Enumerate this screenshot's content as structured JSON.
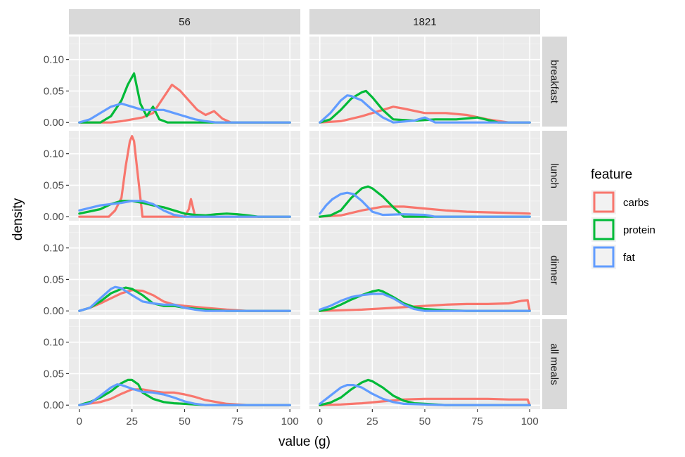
{
  "chart_data": {
    "type": "line",
    "chart_kind": "faceted density plot",
    "xlabel": "value (g)",
    "ylabel": "density",
    "xlim": [
      0,
      100
    ],
    "ylim": [
      0,
      0.13
    ],
    "x_ticks": [
      0,
      25,
      50,
      75,
      100
    ],
    "x_tick_labels": [
      "0",
      "25",
      "50",
      "75",
      "100"
    ],
    "y_ticks": [
      0,
      0.05,
      0.1
    ],
    "y_tick_labels": [
      "0.00",
      "0.05",
      "0.10"
    ],
    "grid": true,
    "columns": [
      "56",
      "1821"
    ],
    "rows": [
      "breakfast",
      "lunch",
      "dinner",
      "all meals"
    ],
    "legend": {
      "title": "feature",
      "position": "right",
      "entries": [
        {
          "label": "carbs",
          "color": "#F8766D"
        },
        {
          "label": "protein",
          "color": "#00BA38"
        },
        {
          "label": "fat",
          "color": "#619CFF"
        }
      ]
    },
    "panels": [
      {
        "col": "56",
        "row": "breakfast",
        "series": [
          {
            "name": "carbs",
            "x": [
              0,
              15,
              20,
              25,
              30,
              35,
              40,
              44,
              48,
              52,
              56,
              60,
              64,
              68,
              72,
              100
            ],
            "y": [
              0,
              0,
              0.002,
              0.005,
              0.008,
              0.015,
              0.04,
              0.06,
              0.05,
              0.035,
              0.02,
              0.012,
              0.018,
              0.006,
              0,
              0
            ]
          },
          {
            "name": "protein",
            "x": [
              0,
              10,
              15,
              20,
              23,
              26,
              29,
              32,
              35,
              38,
              42,
              100
            ],
            "y": [
              0,
              0,
              0.01,
              0.035,
              0.06,
              0.078,
              0.03,
              0.01,
              0.025,
              0.005,
              0,
              0
            ]
          },
          {
            "name": "fat",
            "x": [
              0,
              5,
              10,
              15,
              20,
              25,
              30,
              35,
              40,
              45,
              50,
              55,
              60,
              65,
              100
            ],
            "y": [
              0,
              0.005,
              0.015,
              0.025,
              0.03,
              0.025,
              0.02,
              0.02,
              0.02,
              0.015,
              0.01,
              0.005,
              0.002,
              0,
              0
            ]
          }
        ]
      },
      {
        "col": "1821",
        "row": "breakfast",
        "series": [
          {
            "name": "carbs",
            "x": [
              0,
              10,
              20,
              30,
              35,
              40,
              50,
              60,
              70,
              80,
              90,
              100
            ],
            "y": [
              0,
              0.002,
              0.01,
              0.02,
              0.025,
              0.022,
              0.015,
              0.015,
              0.012,
              0.005,
              0,
              0
            ]
          },
          {
            "name": "protein",
            "x": [
              0,
              5,
              10,
              15,
              20,
              22,
              25,
              30,
              35,
              45,
              55,
              65,
              75,
              85,
              100
            ],
            "y": [
              0,
              0.005,
              0.02,
              0.038,
              0.048,
              0.05,
              0.04,
              0.02,
              0.005,
              0.003,
              0.005,
              0.005,
              0.008,
              0,
              0
            ]
          },
          {
            "name": "fat",
            "x": [
              0,
              5,
              10,
              13,
              15,
              20,
              25,
              30,
              35,
              45,
              50,
              55,
              100
            ],
            "y": [
              0,
              0.015,
              0.035,
              0.043,
              0.042,
              0.035,
              0.02,
              0.008,
              0,
              0.003,
              0.008,
              0,
              0
            ]
          }
        ]
      },
      {
        "col": "56",
        "row": "lunch",
        "series": [
          {
            "name": "carbs",
            "x": [
              0,
              14,
              17,
              20,
              22,
              24,
              25,
              26,
              28,
              30,
              50,
              52,
              53,
              55,
              100
            ],
            "y": [
              0,
              0,
              0.01,
              0.03,
              0.08,
              0.12,
              0.128,
              0.12,
              0.06,
              0,
              0,
              0.012,
              0.028,
              0,
              0
            ]
          },
          {
            "name": "protein",
            "x": [
              0,
              10,
              15,
              20,
              25,
              30,
              35,
              40,
              45,
              50,
              55,
              60,
              65,
              70,
              75,
              80,
              85,
              100
            ],
            "y": [
              0.005,
              0.012,
              0.02,
              0.025,
              0.025,
              0.022,
              0.018,
              0.015,
              0.01,
              0.005,
              0.003,
              0.002,
              0.004,
              0.005,
              0.004,
              0.002,
              0,
              0
            ]
          },
          {
            "name": "fat",
            "x": [
              0,
              5,
              10,
              15,
              20,
              25,
              30,
              35,
              40,
              45,
              50,
              55,
              100
            ],
            "y": [
              0.01,
              0.014,
              0.018,
              0.02,
              0.022,
              0.025,
              0.025,
              0.02,
              0.01,
              0.003,
              0,
              0,
              0
            ]
          }
        ]
      },
      {
        "col": "1821",
        "row": "lunch",
        "series": [
          {
            "name": "carbs",
            "x": [
              0,
              10,
              20,
              30,
              40,
              50,
              60,
              70,
              80,
              90,
              100
            ],
            "y": [
              0,
              0.002,
              0.01,
              0.016,
              0.016,
              0.013,
              0.01,
              0.008,
              0.007,
              0.006,
              0.005
            ]
          },
          {
            "name": "protein",
            "x": [
              0,
              5,
              10,
              15,
              20,
              23,
              25,
              30,
              35,
              40,
              45,
              100
            ],
            "y": [
              0,
              0.002,
              0.01,
              0.03,
              0.045,
              0.048,
              0.045,
              0.032,
              0.015,
              0,
              0,
              0
            ]
          },
          {
            "name": "fat",
            "x": [
              0,
              3,
              6,
              10,
              13,
              16,
              20,
              25,
              30,
              40,
              50,
              55,
              100
            ],
            "y": [
              0.005,
              0.018,
              0.028,
              0.036,
              0.038,
              0.036,
              0.025,
              0.008,
              0.003,
              0.004,
              0.003,
              0,
              0
            ]
          }
        ]
      },
      {
        "col": "56",
        "row": "dinner",
        "series": [
          {
            "name": "carbs",
            "x": [
              0,
              5,
              10,
              15,
              20,
              25,
              30,
              35,
              40,
              45,
              50,
              60,
              70,
              80,
              90,
              100
            ],
            "y": [
              0,
              0.005,
              0.012,
              0.02,
              0.028,
              0.033,
              0.032,
              0.025,
              0.015,
              0.01,
              0.008,
              0.005,
              0.002,
              0,
              0,
              0
            ]
          },
          {
            "name": "protein",
            "x": [
              0,
              5,
              10,
              15,
              20,
              22,
              25,
              30,
              35,
              40,
              45,
              50,
              60,
              70,
              80,
              100
            ],
            "y": [
              0,
              0.005,
              0.015,
              0.028,
              0.035,
              0.037,
              0.035,
              0.025,
              0.012,
              0.008,
              0.008,
              0.005,
              0.002,
              0,
              0,
              0
            ]
          },
          {
            "name": "fat",
            "x": [
              0,
              5,
              10,
              15,
              17,
              20,
              25,
              30,
              35,
              40,
              45,
              50,
              55,
              60,
              100
            ],
            "y": [
              0,
              0.005,
              0.02,
              0.035,
              0.038,
              0.036,
              0.025,
              0.015,
              0.012,
              0.01,
              0.01,
              0.005,
              0.002,
              0,
              0
            ]
          }
        ]
      },
      {
        "col": "1821",
        "row": "dinner",
        "series": [
          {
            "name": "carbs",
            "x": [
              0,
              10,
              20,
              30,
              40,
              50,
              60,
              70,
              80,
              90,
              96,
              99,
              100
            ],
            "y": [
              0,
              0.001,
              0.002,
              0.004,
              0.006,
              0.008,
              0.01,
              0.011,
              0.011,
              0.012,
              0.016,
              0.017,
              0
            ]
          },
          {
            "name": "protein",
            "x": [
              0,
              5,
              10,
              15,
              20,
              25,
              28,
              30,
              35,
              40,
              45,
              50,
              60,
              70,
              100
            ],
            "y": [
              0,
              0.003,
              0.01,
              0.018,
              0.025,
              0.031,
              0.033,
              0.031,
              0.022,
              0.012,
              0.006,
              0.003,
              0.001,
              0,
              0
            ]
          },
          {
            "name": "fat",
            "x": [
              0,
              5,
              10,
              15,
              20,
              25,
              30,
              35,
              40,
              45,
              50,
              100
            ],
            "y": [
              0.002,
              0.008,
              0.016,
              0.022,
              0.025,
              0.027,
              0.027,
              0.02,
              0.01,
              0.003,
              0,
              0
            ]
          }
        ]
      },
      {
        "col": "56",
        "row": "all meals",
        "series": [
          {
            "name": "carbs",
            "x": [
              0,
              10,
              15,
              20,
              25,
              30,
              35,
              40,
              45,
              50,
              55,
              60,
              70,
              80,
              100
            ],
            "y": [
              0,
              0.005,
              0.01,
              0.018,
              0.025,
              0.025,
              0.022,
              0.02,
              0.02,
              0.017,
              0.013,
              0.008,
              0.002,
              0,
              0
            ]
          },
          {
            "name": "protein",
            "x": [
              0,
              5,
              10,
              15,
              20,
              23,
              25,
              28,
              30,
              35,
              40,
              45,
              50,
              60,
              70,
              100
            ],
            "y": [
              0,
              0.005,
              0.012,
              0.022,
              0.035,
              0.04,
              0.04,
              0.033,
              0.02,
              0.01,
              0.005,
              0.003,
              0.002,
              0,
              0,
              0
            ]
          },
          {
            "name": "fat",
            "x": [
              0,
              5,
              10,
              15,
              18,
              20,
              25,
              30,
              35,
              40,
              45,
              50,
              55,
              60,
              100
            ],
            "y": [
              0,
              0.003,
              0.015,
              0.028,
              0.033,
              0.032,
              0.026,
              0.021,
              0.02,
              0.017,
              0.012,
              0.006,
              0.002,
              0,
              0
            ]
          }
        ]
      },
      {
        "col": "1821",
        "row": "all meals",
        "series": [
          {
            "name": "carbs",
            "x": [
              0,
              10,
              20,
              30,
              40,
              50,
              60,
              70,
              80,
              90,
              99,
              100
            ],
            "y": [
              0,
              0.001,
              0.003,
              0.006,
              0.009,
              0.01,
              0.01,
              0.01,
              0.01,
              0.009,
              0.009,
              0
            ]
          },
          {
            "name": "protein",
            "x": [
              0,
              5,
              10,
              15,
              20,
              23,
              25,
              30,
              35,
              40,
              45,
              50,
              60,
              100
            ],
            "y": [
              0,
              0.004,
              0.012,
              0.025,
              0.036,
              0.04,
              0.038,
              0.028,
              0.015,
              0.007,
              0.003,
              0.002,
              0,
              0
            ]
          },
          {
            "name": "fat",
            "x": [
              0,
              5,
              10,
              13,
              16,
              20,
              25,
              30,
              35,
              40,
              50,
              60,
              100
            ],
            "y": [
              0.002,
              0.015,
              0.028,
              0.032,
              0.032,
              0.028,
              0.018,
              0.01,
              0.005,
              0.002,
              0.001,
              0,
              0
            ]
          }
        ]
      }
    ]
  }
}
